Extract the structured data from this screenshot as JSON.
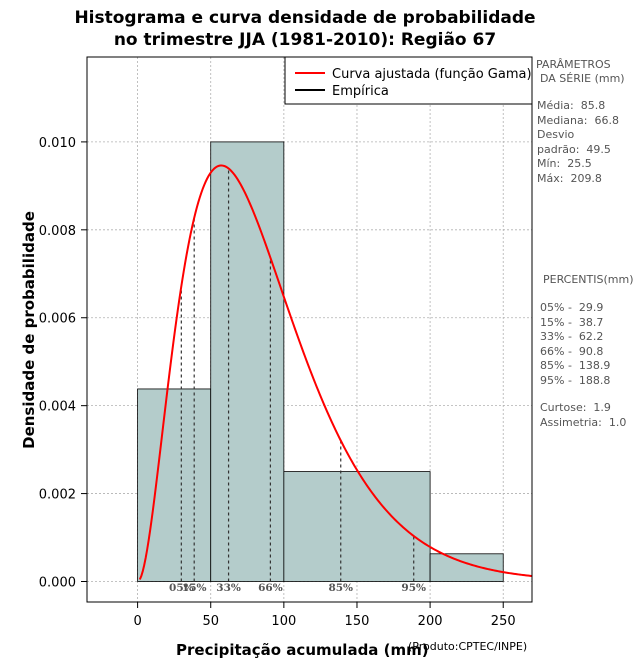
{
  "title_line1": "Histograma e curva densidade de probabilidade",
  "title_line2": "no trimestre JJA (1981-2010): Região 67",
  "xlabel": "Precipitação acumulada (mm)",
  "credit": "(Produto:CPTEC/INPE)",
  "ylabel": "Densidade de probabilidade",
  "legend": {
    "fitted": "Curva ajustada (função Gama)",
    "empirical": "Empírica"
  },
  "parameters": {
    "heading1": "PARÂMETROS",
    "heading2": "DA SÉRIE (mm)",
    "lines": [
      "Média:  85.8",
      "Mediana:  66.8",
      "Desvio",
      "padrão:  49.5",
      "Mín:  25.5",
      "Máx:  209.8"
    ]
  },
  "percentiles": {
    "heading": "PERCENTIS(mm)",
    "lines": [
      "05% -  29.9",
      "15% -  38.7",
      "33% -  62.2",
      "66% -  90.8",
      "85% -  138.9",
      "95% -  188.8"
    ]
  },
  "stats": {
    "lines": [
      "Curtose:  1.9",
      "Assimetria:  1.0"
    ]
  },
  "chart_data": {
    "type": "histogram",
    "xlim": [
      -35,
      270
    ],
    "ylim": [
      0,
      0.0118
    ],
    "x_ticks": [
      0,
      50,
      100,
      150,
      200,
      250
    ],
    "y_ticks": [
      0.0,
      0.002,
      0.004,
      0.006,
      0.008,
      0.01
    ],
    "y_tick_labels": [
      "0.000",
      "0.002",
      "0.004",
      "0.006",
      "0.008",
      "0.010"
    ],
    "bins": [
      {
        "from": 0,
        "to": 50,
        "density": 0.00438
      },
      {
        "from": 50,
        "to": 100,
        "density": 0.01
      },
      {
        "from": 100,
        "to": 200,
        "density": 0.0025
      },
      {
        "from": 200,
        "to": 250,
        "density": 0.00063
      }
    ],
    "gamma_fit": {
      "shape": 3.0,
      "scale": 28.6,
      "shift": 0
    },
    "percentile_markers": [
      {
        "label": "05%",
        "value": 29.9
      },
      {
        "label": "15%",
        "value": 38.7
      },
      {
        "label": "33%",
        "value": 62.2
      },
      {
        "label": "66%",
        "value": 90.8
      },
      {
        "label": "85%",
        "value": 138.9
      },
      {
        "label": "95%",
        "value": 188.8
      }
    ],
    "bar_color": "#b4cccb",
    "curve_color": "#ff0000",
    "grid": true
  }
}
